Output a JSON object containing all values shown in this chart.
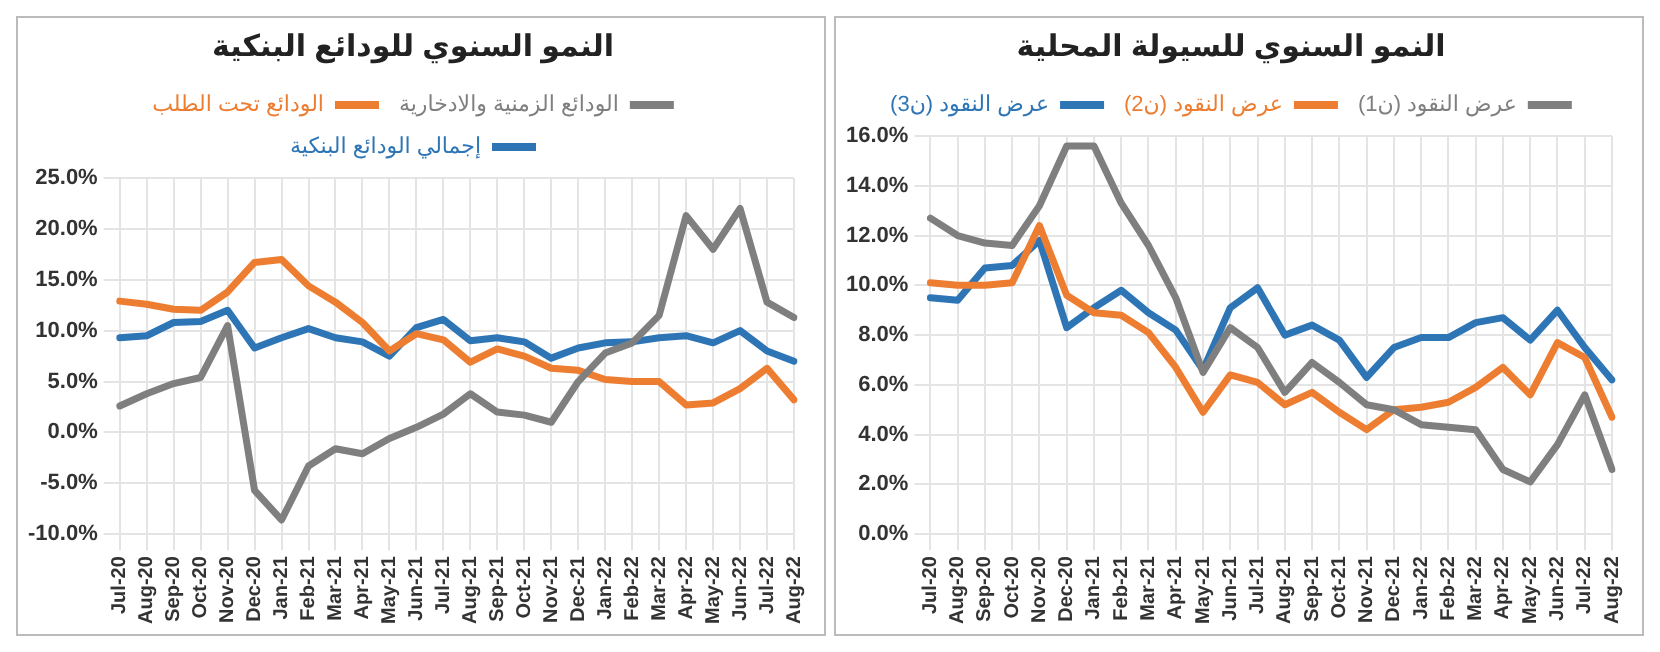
{
  "chart_data": [
    {
      "type": "line",
      "title": "النمو السنوي للودائع البنكية",
      "categories": [
        "Jul-20",
        "Aug-20",
        "Sep-20",
        "Oct-20",
        "Nov-20",
        "Dec-20",
        "Jan-21",
        "Feb-21",
        "Mar-21",
        "Apr-21",
        "May-21",
        "Jun-21",
        "Jul-21",
        "Aug-21",
        "Sep-21",
        "Oct-21",
        "Nov-21",
        "Dec-21",
        "Jan-22",
        "Feb-22",
        "Mar-22",
        "Apr-22",
        "May-22",
        "Jun-22",
        "Jul-22",
        "Aug-22"
      ],
      "series": [
        {
          "name": "الودائع الزمنية والادخارية",
          "color": "#7f7f7f",
          "values": [
            2.6,
            3.8,
            4.8,
            5.4,
            10.5,
            -5.7,
            -8.6,
            -3.3,
            -1.6,
            -2.1,
            -0.6,
            0.5,
            1.8,
            3.8,
            2.0,
            1.7,
            1.0,
            5.0,
            7.8,
            8.8,
            11.5,
            21.3,
            18.0,
            22.0,
            12.8,
            11.3
          ]
        },
        {
          "name": "الودائع تحت الطلب",
          "color": "#ed7d31",
          "values": [
            12.9,
            12.6,
            12.1,
            12.0,
            13.8,
            16.7,
            17.0,
            14.4,
            12.8,
            10.8,
            8.0,
            9.7,
            9.1,
            6.9,
            8.2,
            7.5,
            6.3,
            6.1,
            5.2,
            5.0,
            5.0,
            2.7,
            2.9,
            4.3,
            6.3,
            3.2
          ]
        },
        {
          "name": "إجمالي الودائع البنكية",
          "color": "#2e75b6",
          "values": [
            9.3,
            9.5,
            10.8,
            10.9,
            12.0,
            8.3,
            9.3,
            10.2,
            9.3,
            8.9,
            7.5,
            10.3,
            11.1,
            9.0,
            9.3,
            8.9,
            7.3,
            8.3,
            8.8,
            8.9,
            9.3,
            9.5,
            8.8,
            10.0,
            8.0,
            7.0
          ]
        }
      ],
      "ylim": [
        -10,
        25
      ],
      "yticks": [
        {
          "value": -10,
          "label": "-10.0%"
        },
        {
          "value": -5,
          "label": "-5.0%"
        },
        {
          "value": 0,
          "label": "0.0%"
        },
        {
          "value": 5,
          "label": "5.0%"
        },
        {
          "value": 10,
          "label": "10.0%"
        },
        {
          "value": 15,
          "label": "15.0%"
        },
        {
          "value": 20,
          "label": "20.0%"
        },
        {
          "value": 25,
          "label": "25.0%"
        }
      ],
      "grid": true,
      "legend": "top",
      "marker": "none",
      "line_style": "solid"
    },
    {
      "type": "line",
      "title": "النمو السنوي للسيولة المحلية",
      "categories": [
        "Jul-20",
        "Aug-20",
        "Sep-20",
        "Oct-20",
        "Nov-20",
        "Dec-20",
        "Jan-21",
        "Feb-21",
        "Mar-21",
        "Apr-21",
        "May-21",
        "Jun-21",
        "Jul-21",
        "Aug-21",
        "Sep-21",
        "Oct-21",
        "Nov-21",
        "Dec-21",
        "Jan-22",
        "Feb-22",
        "Mar-22",
        "Apr-22",
        "May-22",
        "Jun-22",
        "Jul-22",
        "Aug-22"
      ],
      "series": [
        {
          "name": "عرض النقود (ن1)",
          "color": "#7f7f7f",
          "values": [
            12.7,
            12.0,
            11.7,
            11.6,
            13.2,
            15.6,
            15.6,
            13.3,
            11.6,
            9.5,
            6.5,
            8.3,
            7.5,
            5.7,
            6.9,
            6.1,
            5.2,
            5.0,
            4.4,
            4.3,
            4.2,
            2.6,
            2.1,
            3.6,
            5.6,
            2.6
          ]
        },
        {
          "name": "عرض النقود (ن2)",
          "color": "#ed7d31",
          "values": [
            10.1,
            10.0,
            10.0,
            10.1,
            12.4,
            9.6,
            8.9,
            8.8,
            8.1,
            6.7,
            4.9,
            6.4,
            6.1,
            5.2,
            5.7,
            4.9,
            4.2,
            5.0,
            5.1,
            5.3,
            5.9,
            6.7,
            5.6,
            7.7,
            7.1,
            4.7
          ]
        },
        {
          "name": "عرض النقود (ن3)",
          "color": "#2e75b6",
          "values": [
            9.5,
            9.4,
            10.7,
            10.8,
            11.8,
            8.3,
            9.1,
            9.8,
            8.9,
            8.2,
            6.6,
            9.1,
            9.9,
            8.0,
            8.4,
            7.8,
            6.3,
            7.5,
            7.9,
            7.9,
            8.5,
            8.7,
            7.8,
            9.0,
            7.5,
            6.2
          ]
        }
      ],
      "ylim": [
        0,
        16
      ],
      "yticks": [
        {
          "value": 0,
          "label": "0.0%"
        },
        {
          "value": 2,
          "label": "2.0%"
        },
        {
          "value": 4,
          "label": "4.0%"
        },
        {
          "value": 6,
          "label": "6.0%"
        },
        {
          "value": 8,
          "label": "8.0%"
        },
        {
          "value": 10,
          "label": "10.0%"
        },
        {
          "value": 12,
          "label": "12.0%"
        },
        {
          "value": 14,
          "label": "14.0%"
        },
        {
          "value": 16,
          "label": "16.0%"
        }
      ],
      "grid": true,
      "legend": "top",
      "marker": "none",
      "line_style": "solid"
    }
  ]
}
